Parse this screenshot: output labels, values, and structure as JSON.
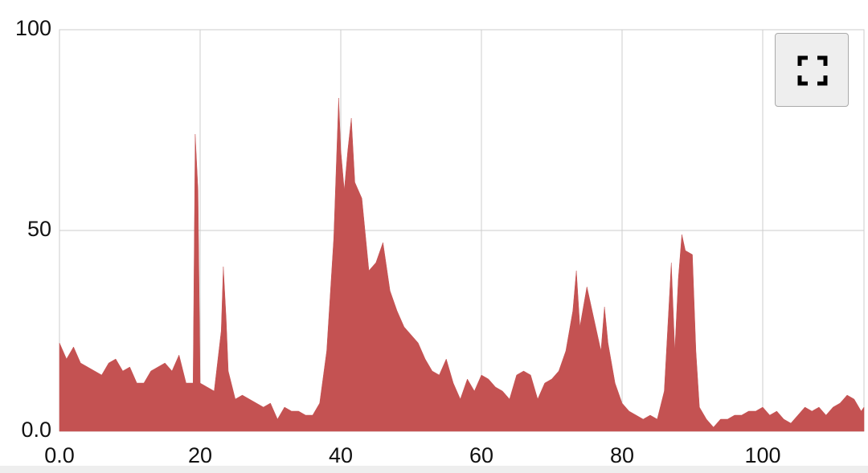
{
  "chart_data": {
    "type": "area",
    "x": [
      0,
      1,
      2,
      3,
      4,
      5,
      6,
      7,
      8,
      9,
      10,
      11,
      12,
      13,
      14,
      15,
      16,
      17,
      18,
      19,
      19.3,
      19.7,
      20,
      21,
      22,
      23,
      23.3,
      23.7,
      24,
      25,
      26,
      27,
      28,
      29,
      30,
      31,
      32,
      33,
      34,
      35,
      36,
      37,
      38,
      39,
      39.7,
      40,
      40.5,
      41,
      41.5,
      42,
      43,
      44,
      45,
      46,
      47,
      48,
      49,
      50,
      51,
      52,
      53,
      54,
      55,
      56,
      57,
      58,
      59,
      60,
      61,
      62,
      63,
      64,
      65,
      66,
      67,
      68,
      69,
      70,
      71,
      72,
      73,
      73.5,
      74,
      75,
      76,
      77,
      77.5,
      78,
      79,
      80,
      81,
      82,
      83,
      84,
      85,
      86,
      87,
      87.5,
      88,
      88.5,
      89,
      90,
      90.5,
      91,
      92,
      93,
      94,
      95,
      96,
      97,
      98,
      99,
      100,
      101,
      102,
      103,
      104,
      105,
      106,
      107,
      108,
      109,
      110,
      111,
      112,
      113,
      114,
      114.4
    ],
    "values": [
      22,
      18,
      21,
      17,
      16,
      15,
      14,
      17,
      18,
      15,
      16,
      12,
      12,
      15,
      16,
      17,
      15,
      19,
      12,
      12,
      74,
      60,
      12,
      11,
      10,
      25,
      41,
      28,
      15,
      8,
      9,
      8,
      7,
      6,
      7,
      3,
      6,
      5,
      5,
      4,
      4,
      7,
      20,
      48,
      83,
      70,
      60,
      70,
      78,
      62,
      58,
      40,
      42,
      47,
      35,
      30,
      26,
      24,
      22,
      18,
      15,
      14,
      18,
      12,
      8,
      13,
      10,
      14,
      13,
      11,
      10,
      8,
      14,
      15,
      14,
      8,
      12,
      13,
      15,
      20,
      30,
      40,
      26,
      36,
      28,
      20,
      31,
      22,
      12,
      7,
      5,
      4,
      3,
      4,
      3,
      10,
      42,
      20,
      38,
      49,
      45,
      44,
      20,
      6,
      3,
      1,
      3,
      3,
      4,
      4,
      5,
      5,
      6,
      4,
      5,
      3,
      2,
      4,
      6,
      5,
      6,
      4,
      6,
      7,
      9,
      8,
      5,
      6
    ],
    "color": "#c45252",
    "xlim": [
      0,
      114.4
    ],
    "xticks": [
      {
        "value": 0,
        "label": "0.0"
      },
      20,
      40,
      60,
      80,
      100
    ],
    "ylim": [
      0,
      100
    ],
    "yticks": [
      {
        "value": 0,
        "label": "0.0"
      },
      50,
      100
    ],
    "grid": true
  }
}
